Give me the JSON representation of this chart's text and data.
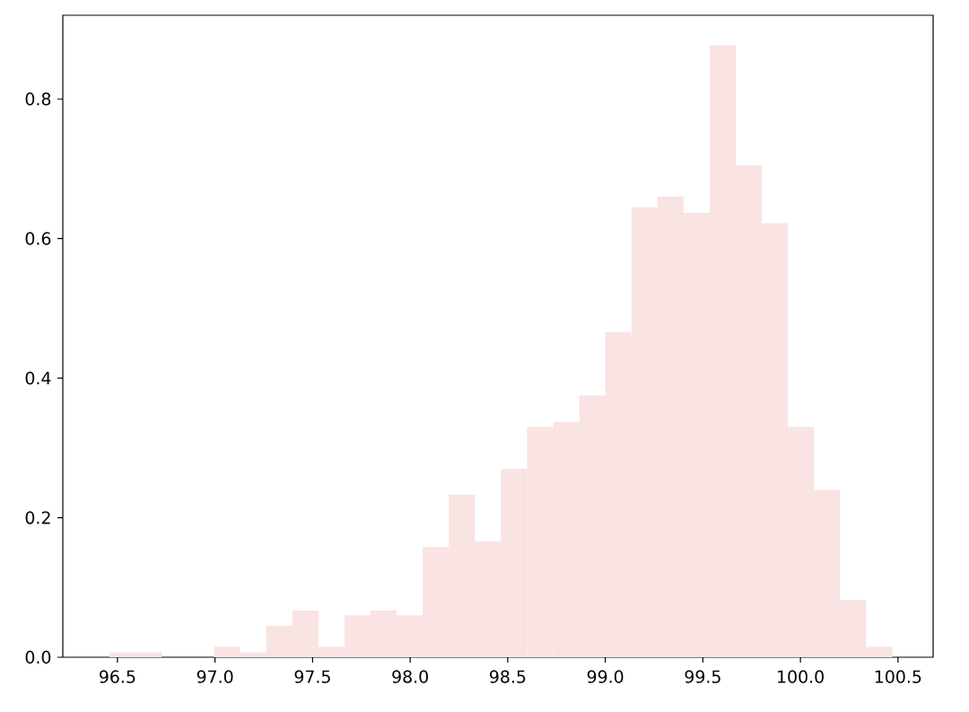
{
  "chart_data": {
    "type": "histogram",
    "color": "#f9e3e3",
    "bins": [
      96.46,
      96.594,
      96.727,
      96.861,
      96.995,
      97.128,
      97.262,
      97.396,
      97.53,
      97.663,
      97.797,
      97.931,
      98.064,
      98.198,
      98.332,
      98.465,
      98.599,
      98.733,
      98.867,
      99.0,
      99.134,
      99.268,
      99.401,
      99.535,
      99.669,
      99.802,
      99.936,
      100.07,
      100.203,
      100.337,
      100.471
    ],
    "values": [
      0.007,
      0.007,
      0,
      0,
      0.015,
      0.007,
      0.045,
      0.067,
      0.015,
      0.06,
      0.067,
      0.06,
      0.158,
      0.233,
      0.166,
      0.27,
      0.33,
      0.337,
      0.375,
      0.466,
      0.645,
      0.66,
      0.637,
      0.877,
      0.705,
      0.622,
      0.33,
      0.24,
      0.082,
      0.015
    ],
    "xlim": [
      96.22,
      100.68
    ],
    "ylim": [
      0,
      0.92
    ],
    "xticks": [
      96.5,
      {
        "value": 97,
        "label": "97.0"
      },
      97.5,
      {
        "value": 98,
        "label": "98.0"
      },
      98.5,
      {
        "value": 99,
        "label": "99.0"
      },
      99.5,
      {
        "value": 100,
        "label": "100.0"
      },
      100.5
    ],
    "yticks": [
      {
        "value": 0,
        "label": "0.0"
      },
      0.2,
      0.4,
      0.6,
      0.8
    ],
    "grid": false
  }
}
